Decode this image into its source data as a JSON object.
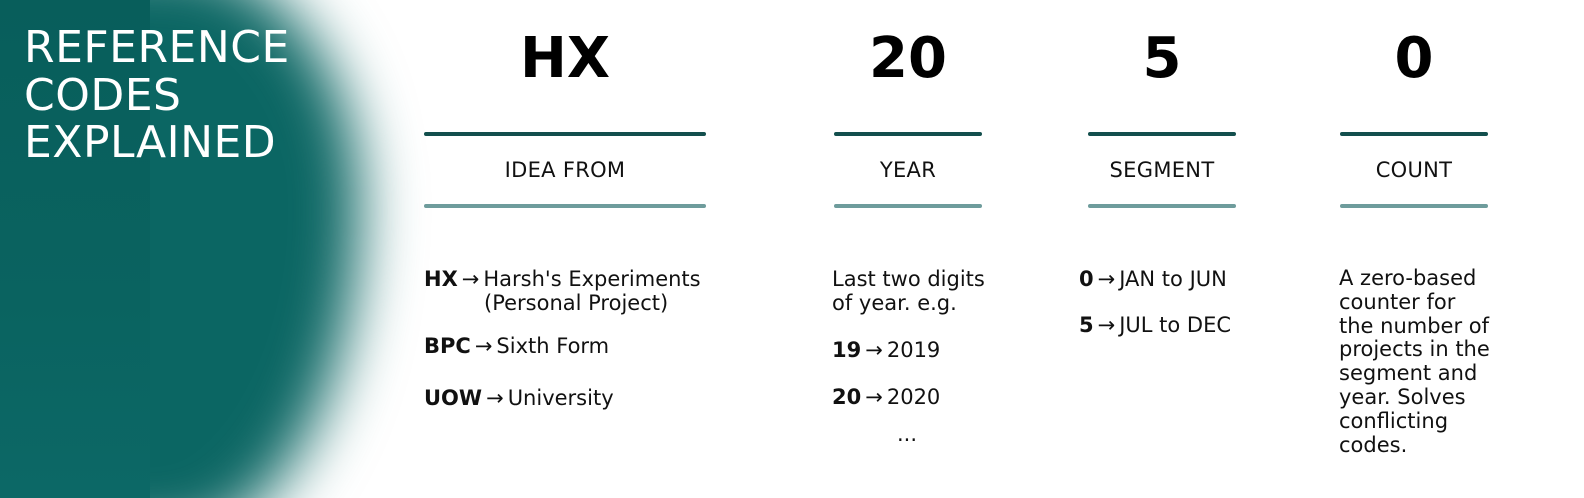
{
  "heading": {
    "line1": "REFERENCE",
    "line2": "CODES",
    "line3": "EXPLAINED"
  },
  "arrow": "→",
  "columns": {
    "idea": {
      "code": "HX",
      "label": "IDEA FROM",
      "items": [
        {
          "key": "HX",
          "value": "Harsh's Experiments",
          "value2": "(Personal Project)"
        },
        {
          "key": "BPC",
          "value": "Sixth Form"
        },
        {
          "key": "UOW",
          "value": "University"
        }
      ]
    },
    "year": {
      "code": "20",
      "label": "YEAR",
      "desc_line1": "Last two digits",
      "desc_line2": "of year. e.g.",
      "items": [
        {
          "key": "19",
          "value": "2019"
        },
        {
          "key": "20",
          "value": "2020"
        }
      ],
      "ellipsis": "..."
    },
    "segment": {
      "code": "5",
      "label": "SEGMENT",
      "items": [
        {
          "key": "0",
          "value": "JAN to JUN"
        },
        {
          "key": "5",
          "value": "JUL to DEC"
        }
      ]
    },
    "count": {
      "code": "0",
      "label": "COUNT",
      "desc_lines": [
        "A zero-based",
        "counter for",
        "the number of",
        "projects in the",
        "segment and",
        "year. Solves",
        "conflicting",
        "codes."
      ]
    }
  },
  "colors": {
    "teal_dark": "#0b6663",
    "rule_dark": "#134f4d",
    "rule_light": "#6e9c9c"
  }
}
